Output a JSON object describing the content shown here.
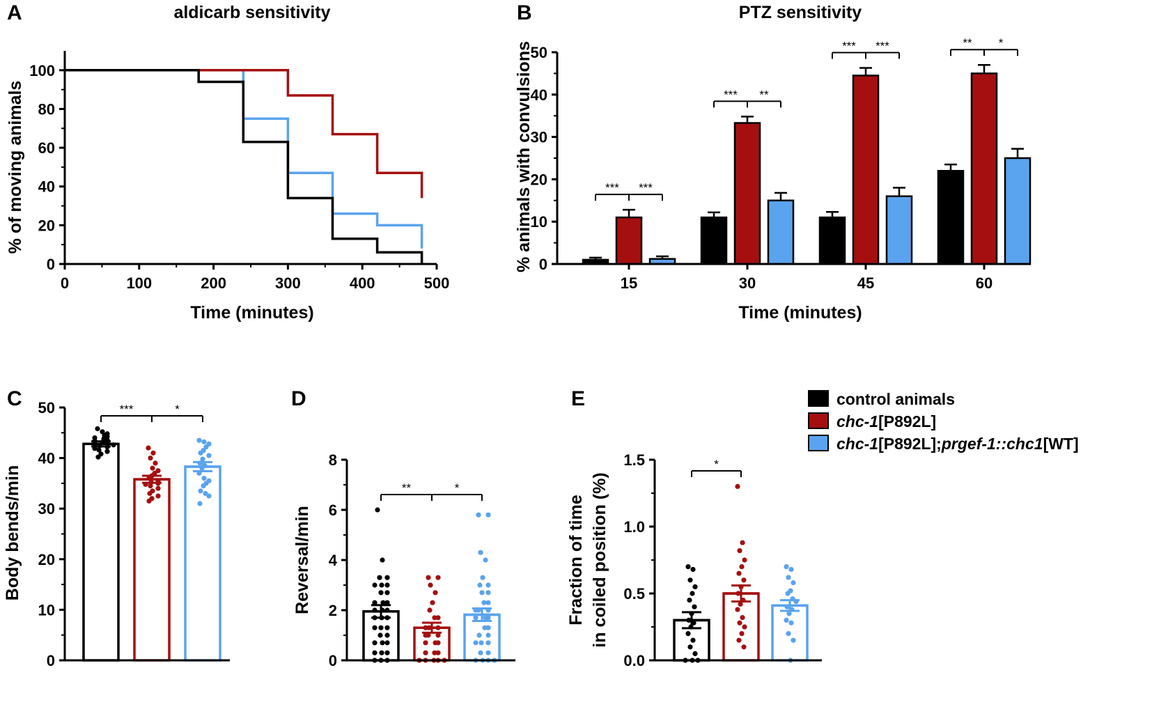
{
  "colors": {
    "control": "#000000",
    "mutant": "#a50f0f",
    "rescue": "#5aa3ee",
    "axis": "#000000"
  },
  "legend": {
    "items": [
      {
        "key": "control",
        "parts": [
          {
            "t": "control animals",
            "i": false
          }
        ]
      },
      {
        "key": "mutant",
        "parts": [
          {
            "t": "chc-1",
            "i": true
          },
          {
            "t": "[P892L]",
            "i": false
          }
        ]
      },
      {
        "key": "rescue",
        "parts": [
          {
            "t": "chc-1",
            "i": true
          },
          {
            "t": "[P892L];",
            "i": false
          },
          {
            "t": "p",
            "i": true
          },
          {
            "t": "rgef-1::chc1",
            "i": true
          },
          {
            "t": "[WT]",
            "i": false
          }
        ]
      }
    ]
  },
  "chart_data": [
    {
      "id": "A",
      "letter": "A",
      "type": "line",
      "title": "aldicarb sensitivity",
      "xlabel": "Time (minutes)",
      "ylabel": "% of moving animals",
      "xlim": [
        0,
        500
      ],
      "ylim": [
        0,
        110
      ],
      "xticks": [
        0,
        100,
        200,
        300,
        400,
        500
      ],
      "yticks": [
        0,
        20,
        40,
        60,
        80,
        100
      ],
      "series": [
        {
          "name": "chc-1[P892L];prgef-1::chc1[WT]",
          "key": "rescue",
          "x": [
            0,
            240,
            240,
            300,
            300,
            360,
            360,
            420,
            420,
            480,
            480
          ],
          "y": [
            100,
            100,
            75,
            75,
            47,
            47,
            26,
            26,
            20,
            20,
            8
          ]
        },
        {
          "name": "chc-1[P892L]",
          "key": "mutant",
          "x": [
            180,
            300,
            300,
            360,
            360,
            420,
            420,
            480,
            480
          ],
          "y": [
            100,
            100,
            87,
            87,
            67,
            67,
            47,
            47,
            34
          ]
        },
        {
          "name": "control animals",
          "key": "control",
          "x": [
            0,
            180,
            180,
            240,
            240,
            300,
            300,
            360,
            360,
            420,
            420,
            480,
            480
          ],
          "y": [
            100,
            100,
            94,
            94,
            63,
            63,
            34,
            34,
            13,
            13,
            6,
            6,
            0
          ]
        }
      ]
    },
    {
      "id": "B",
      "letter": "B",
      "type": "bar",
      "title": "PTZ sensitivity",
      "xlabel": "Time (minutes)",
      "ylabel": "% animals with convulsions",
      "ylim": [
        0,
        50
      ],
      "yticks": [
        0,
        10,
        20,
        30,
        40,
        50
      ],
      "categories": [
        "15",
        "30",
        "45",
        "60"
      ],
      "series": [
        {
          "name": "control animals",
          "key": "control",
          "values": [
            1,
            11,
            11,
            22
          ],
          "errors": [
            0.5,
            1.2,
            1.3,
            1.5
          ]
        },
        {
          "name": "chc-1[P892L]",
          "key": "mutant",
          "values": [
            11,
            33.3,
            44.5,
            45
          ],
          "errors": [
            1.8,
            1.5,
            1.8,
            2.0
          ]
        },
        {
          "name": "chc-1[P892L];prgef-1::chc1[WT]",
          "key": "rescue",
          "values": [
            1.2,
            15,
            16,
            25
          ],
          "errors": [
            0.6,
            1.8,
            2.0,
            2.2
          ]
        }
      ],
      "significance": [
        {
          "group": 0,
          "left": "***",
          "right": "***"
        },
        {
          "group": 1,
          "left": "***",
          "right": "**"
        },
        {
          "group": 2,
          "left": "***",
          "right": "***"
        },
        {
          "group": 3,
          "left": "**",
          "right": "*"
        }
      ]
    },
    {
      "id": "C",
      "letter": "C",
      "type": "bar",
      "title": "",
      "ylabel": "Body bends/min",
      "ylim": [
        0,
        50
      ],
      "yticks": [
        0,
        10,
        20,
        30,
        40,
        50
      ],
      "groups": [
        {
          "name": "control animals",
          "key": "control",
          "mean": 42.8,
          "sem": 0.5,
          "points": [
            45.8,
            45.2,
            44.8,
            44.5,
            44.3,
            44.0,
            43.8,
            43.6,
            43.4,
            43.2,
            43.0,
            42.8,
            42.6,
            42.4,
            42.2,
            41.9,
            41.6,
            41.3,
            40.8,
            40.2
          ]
        },
        {
          "name": "chc-1[P892L]",
          "key": "mutant",
          "mean": 35.8,
          "sem": 0.7,
          "points": [
            42.0,
            41.0,
            40.0,
            39.0,
            38.0,
            37.5,
            37.0,
            36.5,
            36.0,
            35.5,
            35.2,
            35.0,
            34.8,
            34.5,
            34.0,
            33.5,
            33.0,
            32.5,
            32.0,
            31.5
          ]
        },
        {
          "name": "chc-1[P892L];prgef-1::chc1[WT]",
          "key": "rescue",
          "mean": 38.3,
          "sem": 0.9,
          "points": [
            43.5,
            43.2,
            42.8,
            42.2,
            41.5,
            41.0,
            40.5,
            39.8,
            39.0,
            38.5,
            38.0,
            37.0,
            36.0,
            35.5,
            35.0,
            34.5,
            33.5,
            33.0,
            32.5,
            31.0
          ]
        }
      ],
      "significance": {
        "left": "***",
        "right": "*"
      }
    },
    {
      "id": "D",
      "letter": "D",
      "type": "bar",
      "title": "",
      "ylabel": "Reversal/min",
      "ylim": [
        0,
        8
      ],
      "yticks": [
        0,
        2,
        4,
        6,
        8
      ],
      "groups": [
        {
          "name": "control animals",
          "key": "control",
          "mean": 1.95,
          "sem": 0.25,
          "points": [
            6.0,
            4.0,
            3.3,
            3.3,
            3.0,
            3.0,
            3.0,
            2.7,
            2.7,
            2.3,
            2.3,
            2.3,
            2.0,
            2.0,
            2.0,
            1.7,
            1.7,
            1.7,
            1.3,
            1.3,
            1.3,
            1.0,
            1.0,
            0.7,
            0.7,
            0.7,
            0.3,
            0.3,
            0.3,
            0.0,
            0.0,
            0.0
          ]
        },
        {
          "name": "chc-1[P892L]",
          "key": "mutant",
          "mean": 1.3,
          "sem": 0.2,
          "points": [
            3.3,
            3.3,
            3.0,
            2.7,
            2.3,
            2.0,
            1.7,
            1.7,
            1.3,
            1.3,
            1.3,
            1.0,
            1.0,
            1.0,
            0.7,
            0.7,
            0.7,
            0.3,
            0.3,
            0.3,
            0.0,
            0.0,
            0.0,
            0.0,
            0.0
          ]
        },
        {
          "name": "chc-1[P892L];prgef-1::chc1[WT]",
          "key": "rescue",
          "mean": 1.82,
          "sem": 0.25,
          "points": [
            5.8,
            5.8,
            4.3,
            4.0,
            3.3,
            3.0,
            3.0,
            2.7,
            2.7,
            2.3,
            2.3,
            2.0,
            2.0,
            2.0,
            1.7,
            1.7,
            1.7,
            1.3,
            1.3,
            1.0,
            1.0,
            0.7,
            0.7,
            0.7,
            0.3,
            0.3,
            0.0,
            0.0,
            0.0,
            0.0
          ]
        }
      ],
      "significance": {
        "left": "**",
        "right": "*"
      }
    },
    {
      "id": "E",
      "letter": "E",
      "type": "bar",
      "title": "",
      "ylabel": "Fraction of time\nin coiled position (%)",
      "ylim": [
        0,
        1.5
      ],
      "yticks": [
        0.0,
        0.5,
        1.0,
        1.5
      ],
      "ytick_labels": [
        "0.0",
        "0.5",
        "1.0",
        "1.5"
      ],
      "groups": [
        {
          "name": "control animals",
          "key": "control",
          "mean": 0.3,
          "sem": 0.06,
          "points": [
            0.7,
            0.68,
            0.6,
            0.55,
            0.5,
            0.45,
            0.4,
            0.35,
            0.3,
            0.28,
            0.25,
            0.2,
            0.15,
            0.1,
            0.05,
            0.0,
            0.0,
            0.0
          ]
        },
        {
          "name": "chc-1[P892L]",
          "key": "mutant",
          "mean": 0.5,
          "sem": 0.06,
          "points": [
            1.3,
            0.88,
            0.82,
            0.75,
            0.7,
            0.65,
            0.6,
            0.55,
            0.5,
            0.45,
            0.42,
            0.38,
            0.32,
            0.28,
            0.25,
            0.2,
            0.15,
            0.1
          ]
        },
        {
          "name": "chc-1[P892L];prgef-1::chc1[WT]",
          "key": "rescue",
          "mean": 0.41,
          "sem": 0.04,
          "points": [
            0.7,
            0.68,
            0.62,
            0.58,
            0.52,
            0.5,
            0.46,
            0.44,
            0.4,
            0.38,
            0.35,
            0.3,
            0.28,
            0.2,
            0.15,
            0.0
          ]
        }
      ],
      "significance": {
        "left": "*",
        "right": ""
      }
    }
  ]
}
